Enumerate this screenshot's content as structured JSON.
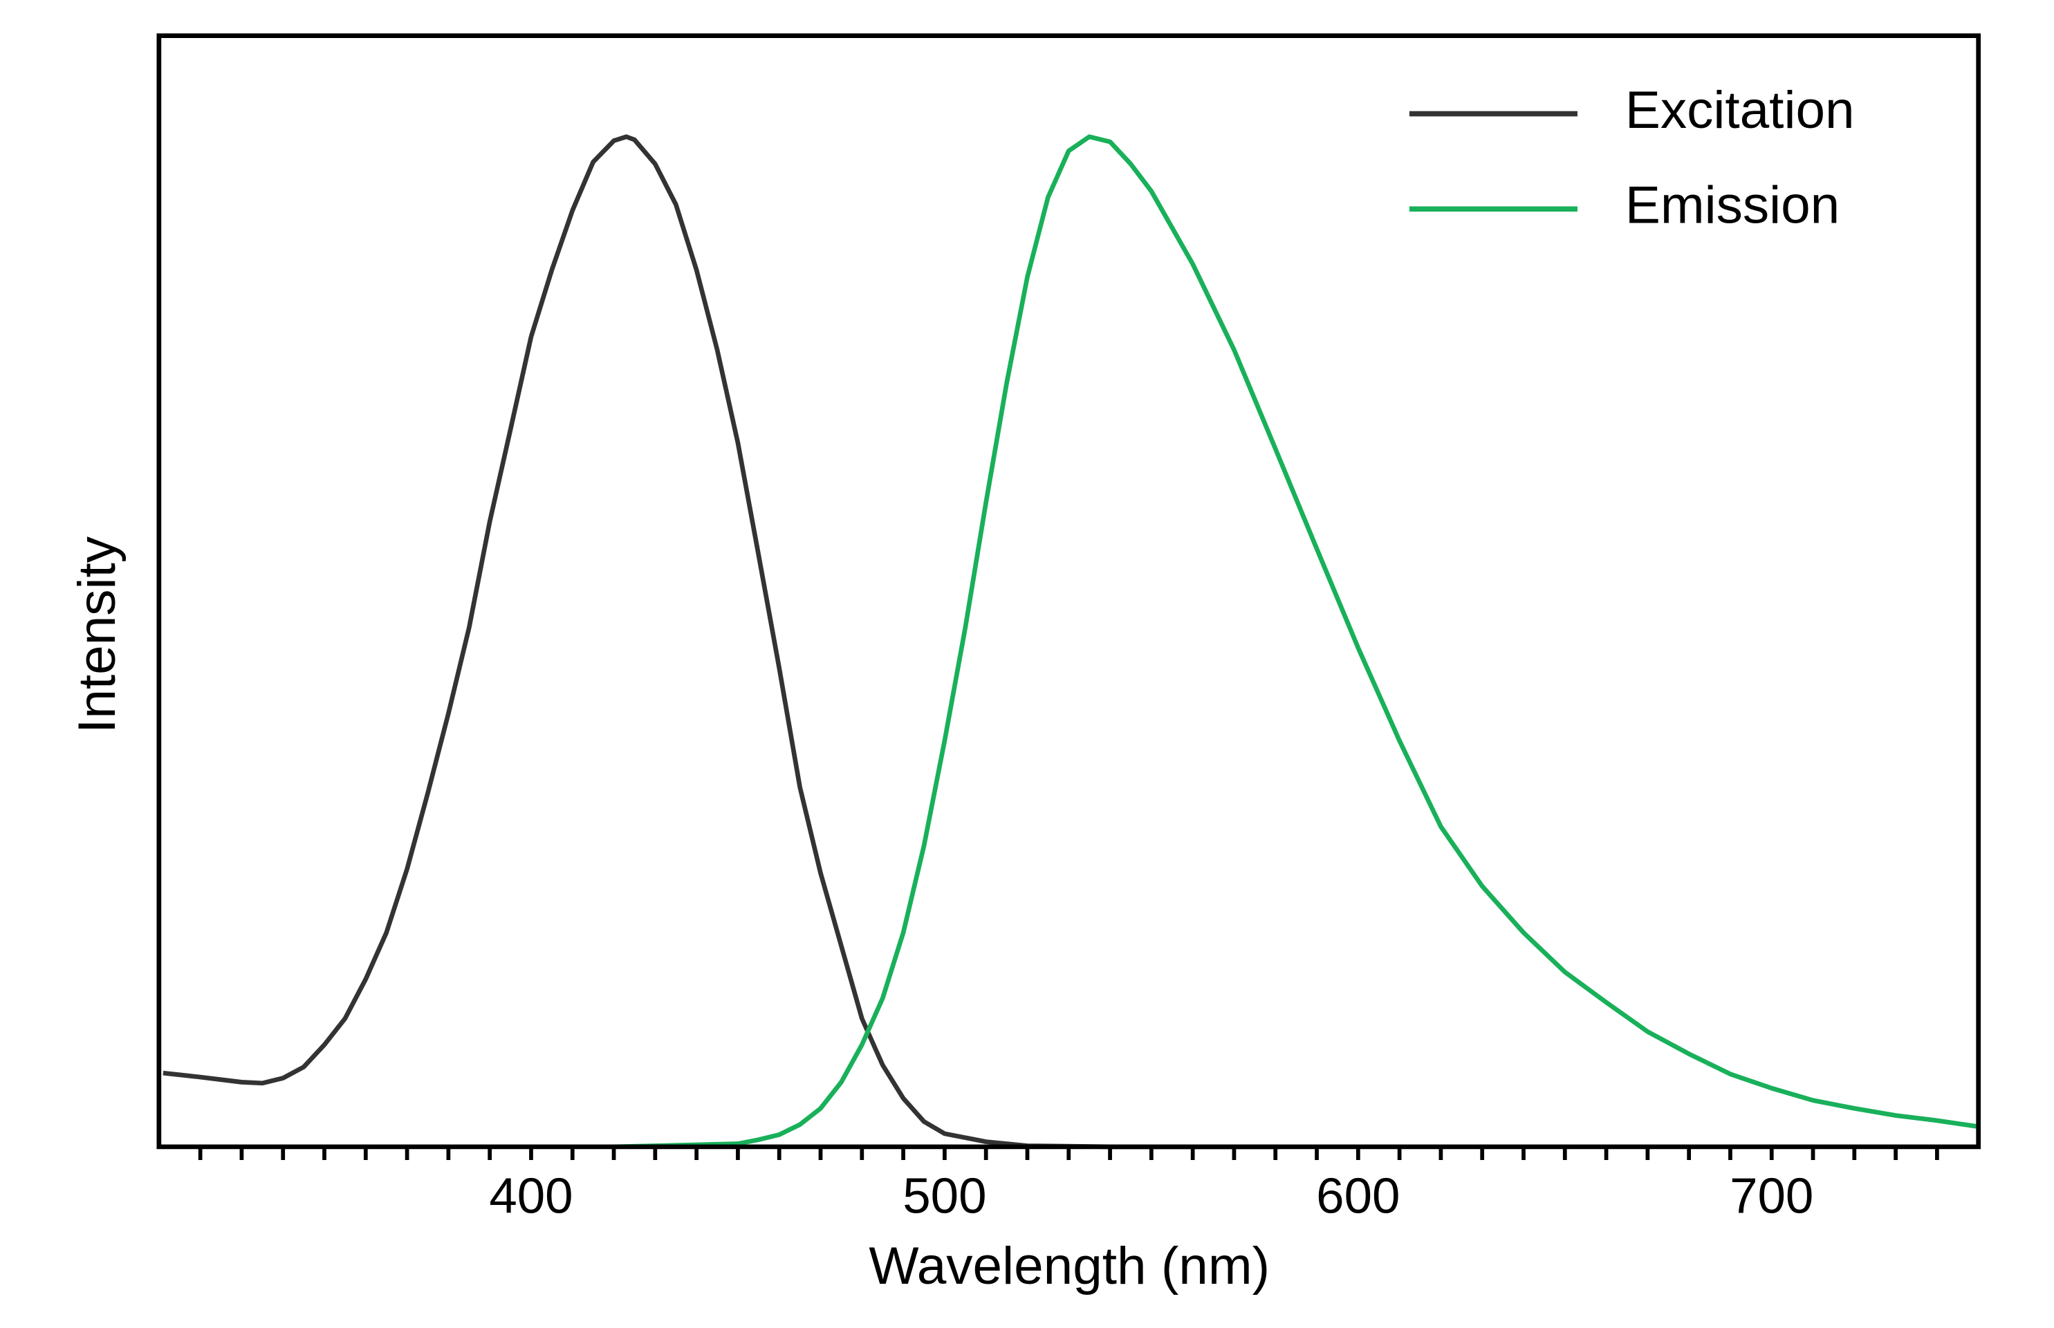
{
  "chart_data": {
    "type": "line",
    "x_label": "Wavelength (nm)",
    "y_label": "Intensity",
    "xlim": [
      310,
      750
    ],
    "ylim": [
      0,
      1.1
    ],
    "xticks": [
      400,
      500,
      600,
      700
    ],
    "minor_xticks": [
      320,
      330,
      340,
      350,
      360,
      370,
      380,
      390,
      410,
      420,
      430,
      440,
      450,
      460,
      470,
      480,
      490,
      510,
      520,
      530,
      540,
      550,
      560,
      570,
      580,
      590,
      610,
      620,
      630,
      640,
      650,
      660,
      670,
      680,
      690,
      710,
      720,
      730,
      740
    ],
    "legend": "upper right",
    "series": [
      {
        "name": "Excitation",
        "color": "#333333",
        "x": [
          311,
          320,
          330,
          335,
          340,
          345,
          350,
          355,
          360,
          365,
          370,
          375,
          380,
          385,
          390,
          395,
          400,
          405,
          410,
          415,
          420,
          423,
          425,
          430,
          435,
          440,
          445,
          450,
          455,
          460,
          465,
          470,
          475,
          480,
          485,
          490,
          495,
          500,
          510,
          520,
          540,
          560,
          581
        ],
        "values": [
          0.073,
          0.069,
          0.064,
          0.063,
          0.068,
          0.079,
          0.101,
          0.127,
          0.166,
          0.212,
          0.275,
          0.35,
          0.429,
          0.514,
          0.619,
          0.71,
          0.802,
          0.868,
          0.927,
          0.975,
          0.996,
          1.0,
          0.997,
          0.973,
          0.933,
          0.868,
          0.789,
          0.697,
          0.586,
          0.474,
          0.356,
          0.271,
          0.199,
          0.127,
          0.081,
          0.048,
          0.025,
          0.013,
          0.005,
          0.001,
          0,
          0,
          0
        ]
      },
      {
        "name": "Emission",
        "color": "#19b05a",
        "x": [
          420,
          440,
          450,
          455,
          460,
          465,
          470,
          475,
          480,
          485,
          490,
          495,
          500,
          505,
          510,
          515,
          520,
          525,
          530,
          535,
          540,
          545,
          550,
          560,
          570,
          580,
          590,
          600,
          610,
          620,
          630,
          640,
          650,
          660,
          670,
          680,
          690,
          700,
          710,
          720,
          730,
          740,
          750
        ],
        "values": [
          0,
          0.002,
          0.003,
          0.007,
          0.012,
          0.022,
          0.038,
          0.064,
          0.101,
          0.147,
          0.212,
          0.298,
          0.402,
          0.514,
          0.638,
          0.756,
          0.861,
          0.94,
          0.986,
          1.0,
          0.995,
          0.973,
          0.946,
          0.874,
          0.789,
          0.691,
          0.592,
          0.494,
          0.402,
          0.317,
          0.258,
          0.212,
          0.173,
          0.143,
          0.114,
          0.092,
          0.072,
          0.058,
          0.046,
          0.038,
          0.031,
          0.026,
          0.02
        ]
      }
    ]
  }
}
